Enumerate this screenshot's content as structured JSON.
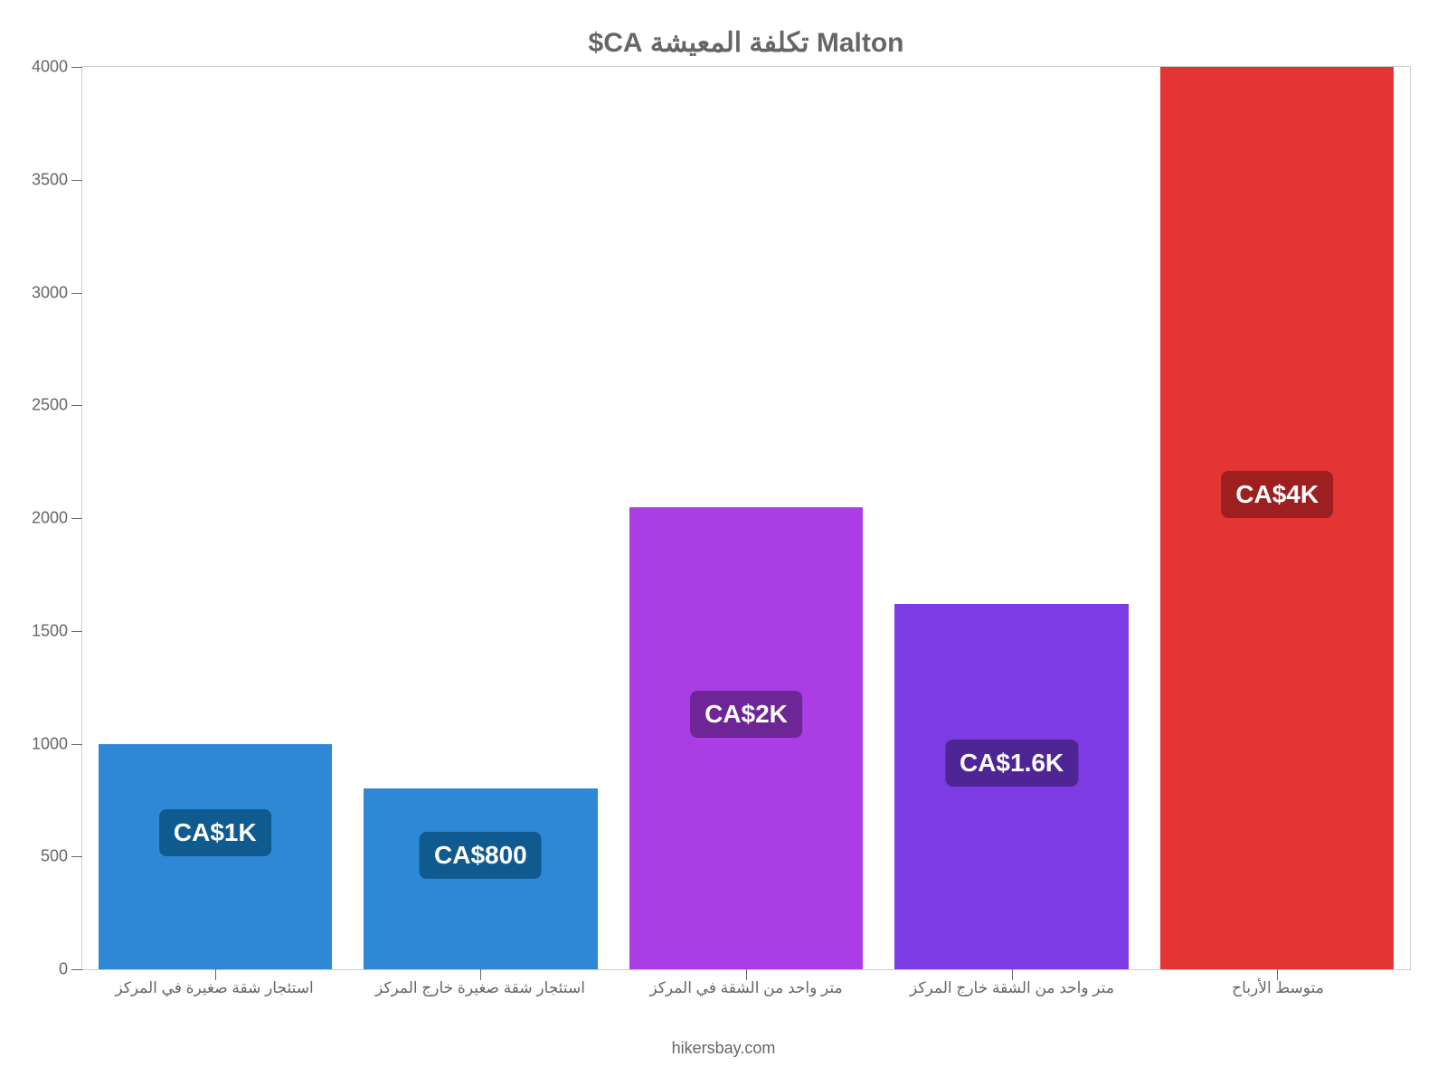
{
  "chart": {
    "type": "bar",
    "title": "Malton تكلفة المعيشة CA$",
    "title_fontsize": 30,
    "title_color": "#666666",
    "background_color": "#ffffff",
    "plot_border_color": "#cccccc",
    "axis_text_color": "#666666",
    "ylim_min": 0,
    "ylim_max": 4000,
    "ytick_step": 500,
    "y_ticks": [
      0,
      500,
      1000,
      1500,
      2000,
      2500,
      3000,
      3500,
      4000
    ],
    "y_label_fontsize": 18,
    "x_label_fontsize": 17,
    "categories": [
      "استئجار شقة صغيرة في المركز",
      "استئجار شقة صغيرة خارج المركز",
      "متر واحد من الشقة في المركز",
      "متر واحد من الشقة خارج المركز",
      "متوسط الأرباح"
    ],
    "values": [
      1000,
      800,
      2050,
      1620,
      4000
    ],
    "bar_colors": [
      "#2f88d6",
      "#2f88d6",
      "#aa3de3",
      "#7d3ce3",
      "#e43535"
    ],
    "value_labels": [
      "CA$1K",
      "CA$800",
      "CA$2K",
      "CA$1.6K",
      "CA$4K"
    ],
    "value_label_bg_colors": [
      "#0f5a8f",
      "#0f5a8f",
      "#6e2596",
      "#4f2596",
      "#9e1f1f"
    ],
    "value_label_text_color": "#ffffff",
    "value_label_fontsize": 28,
    "bar_width_ratio": 0.88,
    "attribution": "hikersbay.com",
    "attribution_fontsize": 18,
    "attribution_color": "#666666"
  }
}
